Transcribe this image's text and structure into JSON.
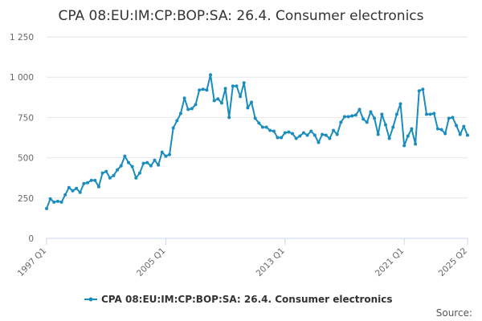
{
  "chart_data": {
    "type": "line",
    "title": "CPA 08:EU:IM:CP:BOP:SA: 26.4. Consumer electronics",
    "xlabel": "",
    "ylabel": "",
    "ylim": [
      0,
      1250
    ],
    "y_ticks": [
      "0",
      "250",
      "500",
      "750",
      "1 000",
      "1 250"
    ],
    "y_tick_values": [
      0,
      250,
      500,
      750,
      1000,
      1250
    ],
    "x_tick_labels": [
      "1997 Q1",
      "2005 Q1",
      "2013 Q1",
      "2021 Q1",
      "2025 Q2"
    ],
    "grid": "horizontal",
    "legend_position": "bottom-center",
    "series": [
      {
        "name": "CPA 08:EU:IM:CP:BOP:SA: 26.4. Consumer electronics",
        "color": "#1a8cbd",
        "x_start": "1997 Q1",
        "frequency": "quarterly",
        "values": [
          185,
          245,
          225,
          230,
          225,
          270,
          315,
          295,
          310,
          285,
          340,
          345,
          360,
          360,
          320,
          405,
          415,
          375,
          390,
          425,
          450,
          510,
          470,
          445,
          375,
          405,
          465,
          470,
          450,
          485,
          455,
          535,
          510,
          520,
          685,
          730,
          775,
          870,
          800,
          805,
          830,
          920,
          925,
          920,
          1015,
          855,
          865,
          840,
          930,
          750,
          945,
          945,
          880,
          965,
          810,
          845,
          745,
          715,
          690,
          690,
          670,
          665,
          625,
          625,
          655,
          660,
          650,
          620,
          635,
          655,
          640,
          665,
          640,
          595,
          645,
          640,
          620,
          670,
          645,
          720,
          755,
          755,
          760,
          765,
          800,
          740,
          720,
          785,
          745,
          645,
          770,
          705,
          620,
          690,
          770,
          835,
          575,
          635,
          680,
          585,
          915,
          925,
          770,
          770,
          775,
          680,
          675,
          650,
          745,
          750,
          700,
          645,
          695,
          640
        ]
      }
    ]
  },
  "legend": {
    "label": "CPA 08:EU:IM:CP:BOP:SA: 26.4. Consumer electronics"
  },
  "footer": {
    "source_label": "Source:"
  }
}
